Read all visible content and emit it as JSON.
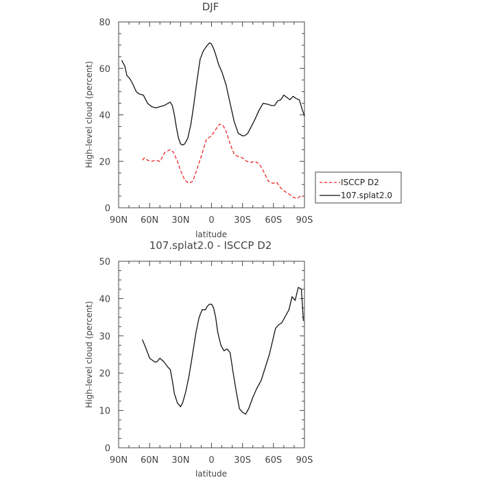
{
  "chart_data": [
    {
      "type": "line",
      "title": "DJF",
      "xlabel": "latitude",
      "ylabel": "High-level cloud (percent)",
      "x_tick_labels": [
        "90N",
        "60N",
        "30N",
        "0",
        "30S",
        "60S",
        "90S"
      ],
      "x_tick_values": [
        -90,
        -60,
        -30,
        0,
        30,
        60,
        90
      ],
      "xlim": [
        -90,
        90
      ],
      "ylim": [
        0,
        80
      ],
      "y_ticks": [
        0,
        20,
        40,
        60,
        80
      ],
      "y_tick_labels": [
        "0",
        "20",
        "40",
        "60",
        "80"
      ],
      "legend_position": "right",
      "series": [
        {
          "name": "ISCCP D2",
          "color": "#ee2222",
          "dash": "dashed",
          "x": [
            -67,
            -65,
            -62,
            -58,
            -55,
            -50,
            -45,
            -40,
            -37,
            -33,
            -30,
            -26,
            -22,
            -18,
            -15,
            -10,
            -5,
            0,
            3,
            6,
            8,
            11,
            14,
            18,
            22,
            26,
            30,
            34,
            38,
            42,
            46,
            50,
            55,
            59,
            63,
            67,
            71,
            75,
            79,
            83,
            86,
            89
          ],
          "y": [
            20.5,
            21.5,
            20.5,
            20.0,
            20.5,
            20.0,
            24.0,
            25.0,
            24.0,
            20.0,
            16.0,
            12.0,
            10.5,
            11.5,
            15.5,
            22.0,
            29.5,
            31.0,
            33.0,
            35.0,
            36.0,
            35.5,
            33.0,
            27.5,
            23.0,
            22.0,
            21.5,
            20.0,
            19.5,
            20.0,
            19.0,
            16.0,
            11.5,
            10.5,
            11.0,
            8.5,
            7.0,
            6.0,
            4.5,
            4.0,
            5.0,
            5.0
          ]
        },
        {
          "name": "107.splat2.0",
          "color": "#111111",
          "dash": "solid",
          "x": [
            -87,
            -84,
            -82,
            -79,
            -76,
            -73,
            -70,
            -66,
            -62,
            -58,
            -54,
            -50,
            -46,
            -42,
            -40,
            -38,
            -36,
            -34,
            -32,
            -30,
            -28,
            -26,
            -23,
            -20,
            -17,
            -14,
            -11,
            -8,
            -5,
            -2,
            0,
            2,
            4,
            7,
            10,
            14,
            18,
            22,
            26,
            30,
            32,
            35,
            38,
            42,
            46,
            50,
            55,
            58,
            61,
            64,
            67,
            70,
            73,
            76,
            79,
            82,
            85,
            88,
            90
          ],
          "y": [
            63.5,
            61.0,
            57.0,
            55.5,
            53.0,
            50.0,
            49.0,
            48.5,
            45.0,
            43.5,
            43.0,
            43.5,
            44.0,
            45.0,
            45.5,
            44.0,
            40.0,
            34.5,
            30.0,
            27.5,
            27.0,
            27.5,
            30.0,
            36.0,
            45.0,
            55.0,
            64.0,
            67.5,
            69.5,
            71.0,
            70.5,
            68.5,
            66.0,
            61.5,
            58.5,
            53.0,
            45.0,
            37.0,
            32.0,
            31.0,
            31.0,
            32.0,
            34.5,
            38.0,
            42.0,
            45.0,
            44.5,
            44.0,
            44.0,
            46.0,
            46.5,
            48.5,
            47.5,
            46.5,
            48.0,
            47.0,
            46.5,
            42.0,
            39.5
          ]
        }
      ]
    },
    {
      "type": "line",
      "title": "107.splat2.0 - ISCCP D2",
      "xlabel": "latitude",
      "ylabel": "High-level cloud (percent)",
      "x_tick_labels": [
        "90N",
        "60N",
        "30N",
        "0",
        "30S",
        "60S",
        "90S"
      ],
      "x_tick_values": [
        -90,
        -60,
        -30,
        0,
        30,
        60,
        90
      ],
      "xlim": [
        -90,
        90
      ],
      "ylim": [
        0,
        50
      ],
      "y_ticks": [
        0,
        10,
        20,
        30,
        40,
        50
      ],
      "y_tick_labels": [
        "0",
        "10",
        "20",
        "30",
        "40",
        "50"
      ],
      "series": [
        {
          "color": "#111111",
          "dash": "solid",
          "x": [
            -67,
            -64,
            -60,
            -55,
            -53,
            -50,
            -46,
            -42,
            -40,
            -38,
            -36,
            -33,
            -30,
            -28,
            -25,
            -22,
            -19,
            -15,
            -12,
            -9,
            -6,
            -4,
            -2,
            0,
            2,
            4,
            6,
            9,
            12,
            15,
            18,
            21,
            24,
            27,
            30,
            33,
            36,
            40,
            44,
            48,
            52,
            56,
            59,
            62,
            65,
            68,
            71,
            75,
            78,
            81,
            84,
            87,
            89
          ],
          "y": [
            29.0,
            27.0,
            24.0,
            23.0,
            23.0,
            24.0,
            23.0,
            21.5,
            21.0,
            18.0,
            14.5,
            12.0,
            11.0,
            12.0,
            15.0,
            19.0,
            24.0,
            31.0,
            35.0,
            37.0,
            37.0,
            38.0,
            38.5,
            38.5,
            37.5,
            35.0,
            31.0,
            27.5,
            26.0,
            26.5,
            25.5,
            20.0,
            15.0,
            10.5,
            9.5,
            9.0,
            10.5,
            13.5,
            16.0,
            18.0,
            21.5,
            25.0,
            28.5,
            32.0,
            33.0,
            33.5,
            35.0,
            37.0,
            40.5,
            39.5,
            43.0,
            42.5,
            34.0
          ]
        }
      ]
    }
  ]
}
